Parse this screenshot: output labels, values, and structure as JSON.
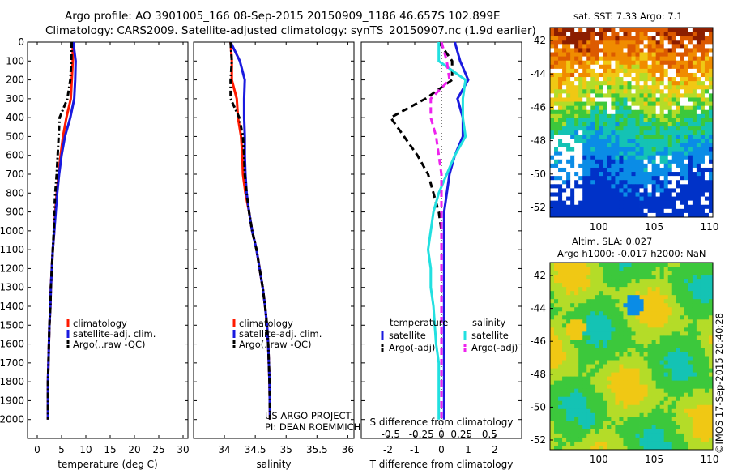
{
  "header": {
    "line1": "Argo profile: AO 3901005_166 08-Sep-2015 20150909_1186 46.657S 102.899E",
    "line2": "Climatology: CARS2009. Satellite-adjusted climatology: synTS_20150907.nc (1.9d earlier)"
  },
  "project": {
    "line1": "US ARGO PROJECT",
    "line2": "PI: DEAN ROEMMICH"
  },
  "map_sst": {
    "title": "sat. SST: 7.33 Argo: 7.1"
  },
  "map_sla": {
    "title1": "Altim. SLA: 0.027",
    "title2": "Argo h1000: -0.017 h2000: NaN"
  },
  "credit": "©IMOS 17-Sep-2015 20:40:28",
  "colors": {
    "climatology": "#ff1a00",
    "satellite": "#1a1adf",
    "argo": "#000000",
    "sal_satellite": "#22e0e0",
    "sal_argo": "#ee22ee"
  },
  "chart_data": [
    {
      "type": "line",
      "xlabel": "temperature (deg C)",
      "ylabel": "",
      "xlim": [
        -2,
        31
      ],
      "ylim": [
        2100,
        0
      ],
      "xticks": [
        0,
        5,
        10,
        15,
        20,
        25,
        30
      ],
      "yticks": [
        0,
        100,
        200,
        300,
        400,
        500,
        600,
        700,
        800,
        900,
        1000,
        1100,
        1200,
        1300,
        1400,
        1500,
        1600,
        1700,
        1800,
        1900,
        2000
      ],
      "legend": [
        "climatology",
        "satellite-adj. clim.",
        "Argo(..raw -QC)"
      ],
      "series": [
        {
          "name": "climatology",
          "x": [
            7.3,
            7.3,
            7.1,
            6.9,
            6.0,
            5.3,
            4.8,
            4.4,
            4.0,
            3.7,
            3.5,
            3.2,
            3.0,
            2.8,
            2.7,
            2.5,
            2.4,
            2.3,
            2.2,
            2.2
          ],
          "y": [
            0,
            100,
            200,
            300,
            400,
            500,
            600,
            700,
            800,
            900,
            1000,
            1100,
            1200,
            1300,
            1400,
            1500,
            1600,
            1700,
            1800,
            2000
          ]
        },
        {
          "name": "satellite-adj. clim.",
          "x": [
            7.4,
            7.9,
            7.8,
            7.6,
            6.8,
            5.7,
            5.0,
            4.5,
            4.1,
            3.8,
            3.5,
            3.2,
            3.0,
            2.8,
            2.7,
            2.5,
            2.4,
            2.3,
            2.2,
            2.2
          ],
          "y": [
            0,
            100,
            200,
            300,
            400,
            500,
            600,
            700,
            800,
            900,
            1000,
            1100,
            1200,
            1300,
            1400,
            1500,
            1600,
            1700,
            1800,
            2000
          ]
        },
        {
          "name": "Argo(..raw -QC)",
          "x": [
            7.1,
            7.0,
            6.8,
            6.2,
            4.6,
            4.4,
            4.2,
            4.0,
            3.7,
            3.5,
            3.4,
            3.2,
            3.0,
            2.8,
            2.7,
            2.5,
            2.4,
            2.3,
            2.2,
            2.2
          ],
          "y": [
            0,
            100,
            200,
            300,
            400,
            500,
            600,
            700,
            800,
            900,
            1000,
            1100,
            1200,
            1300,
            1400,
            1500,
            1600,
            1700,
            1800,
            2000
          ]
        }
      ]
    },
    {
      "type": "line",
      "xlabel": "salinity",
      "xlim": [
        33.5,
        36.1
      ],
      "ylim": [
        2100,
        0
      ],
      "xticks": [
        34,
        34.5,
        35,
        35.5,
        36
      ],
      "legend": [
        "climatology",
        "satellite-adj. clim.",
        "Argo(..raw -QC)"
      ],
      "series": [
        {
          "name": "climatology",
          "x": [
            34.1,
            34.12,
            34.12,
            34.2,
            34.22,
            34.27,
            34.29,
            34.3,
            34.34,
            34.4,
            34.45,
            34.52,
            34.57,
            34.62,
            34.66,
            34.69,
            34.71,
            34.72,
            34.73,
            34.74
          ],
          "y": [
            0,
            100,
            200,
            300,
            400,
            500,
            600,
            700,
            800,
            900,
            1000,
            1100,
            1200,
            1300,
            1400,
            1500,
            1600,
            1700,
            1800,
            2000
          ]
        },
        {
          "name": "satellite-adj. clim.",
          "x": [
            34.1,
            34.25,
            34.33,
            34.32,
            34.32,
            34.33,
            34.33,
            34.34,
            34.36,
            34.4,
            34.45,
            34.52,
            34.57,
            34.62,
            34.66,
            34.69,
            34.71,
            34.72,
            34.73,
            34.74
          ],
          "y": [
            0,
            100,
            200,
            300,
            400,
            500,
            600,
            700,
            800,
            900,
            1000,
            1100,
            1200,
            1300,
            1400,
            1500,
            1600,
            1700,
            1800,
            2000
          ]
        },
        {
          "name": "Argo(..raw -QC)",
          "x": [
            34.1,
            34.12,
            34.1,
            34.1,
            34.24,
            34.3,
            34.32,
            34.33,
            34.36,
            34.4,
            34.45,
            34.52,
            34.57,
            34.62,
            34.66,
            34.69,
            34.71,
            34.72,
            34.73,
            34.74
          ],
          "y": [
            0,
            100,
            200,
            300,
            400,
            500,
            600,
            700,
            800,
            900,
            1000,
            1100,
            1200,
            1300,
            1400,
            1500,
            1600,
            1700,
            1800,
            2000
          ]
        }
      ]
    },
    {
      "type": "line",
      "xlabel": "T difference from climatology",
      "toplabel": "S difference from climatology",
      "xlim": [
        -3,
        3
      ],
      "ylim": [
        2100,
        0
      ],
      "xticks": [
        -2,
        -1,
        0,
        1,
        2
      ],
      "s_ticks": [
        "-0.5",
        "-0.25",
        "0",
        "0.25",
        "0.5"
      ],
      "legend_groups": [
        "temperature",
        "salinity"
      ],
      "legend": [
        "satellite",
        "Argo(-adj)",
        "satellite",
        "Argo(-adj)"
      ],
      "series": [
        {
          "name": "satellite",
          "x": [
            0.5,
            0.7,
            1.0,
            0.6,
            0.8,
            0.8,
            0.5,
            0.3,
            0.2,
            0.1,
            0.1,
            0.1,
            0.1,
            0.1,
            0.1,
            0.1,
            0.1,
            0.1,
            0.1
          ],
          "y": [
            0,
            100,
            200,
            300,
            400,
            500,
            600,
            700,
            800,
            900,
            1000,
            1100,
            1200,
            1300,
            1400,
            1600,
            1700,
            1800,
            2000
          ]
        },
        {
          "name": "Argo(-adj)",
          "x": [
            -0.1,
            0.4,
            0.4,
            -0.6,
            -1.9,
            -1.4,
            -0.9,
            -0.5,
            -0.3,
            -0.1,
            0.0,
            0.0,
            0.0,
            0.0,
            0.0,
            0.0,
            0.0,
            0.0,
            0.0
          ],
          "y": [
            0,
            100,
            200,
            300,
            400,
            500,
            600,
            700,
            800,
            900,
            1000,
            1100,
            1200,
            1300,
            1400,
            1600,
            1700,
            1800,
            2000
          ]
        },
        {
          "name": "satellite",
          "x": [
            -0.1,
            -0.1,
            0.9,
            0.8,
            0.8,
            0.9,
            0.5,
            0.2,
            -0.1,
            -0.3,
            -0.4,
            -0.5,
            -0.4,
            -0.4,
            -0.3,
            -0.2,
            -0.1,
            -0.1,
            -0.1
          ],
          "y": [
            0,
            100,
            200,
            300,
            400,
            500,
            600,
            700,
            800,
            900,
            1000,
            1100,
            1200,
            1300,
            1400,
            1600,
            1700,
            1800,
            2000
          ]
        },
        {
          "name": "Argo(-adj)",
          "x": [
            0.0,
            0.2,
            0.3,
            -0.4,
            -0.4,
            -0.2,
            -0.1,
            0.0,
            0.0,
            0.0,
            0.0,
            0.0,
            0.0,
            0.0,
            0.0,
            0.0,
            0.0,
            0.0,
            0.0
          ],
          "y": [
            0,
            100,
            200,
            300,
            400,
            500,
            600,
            700,
            800,
            900,
            1000,
            1100,
            1200,
            1300,
            1400,
            1600,
            1700,
            1800,
            2000
          ]
        }
      ]
    }
  ],
  "maps": {
    "xticks": [
      "100",
      "105",
      "110"
    ],
    "yticks": [
      "-42",
      "-44",
      "-46",
      "-48",
      "-50",
      "-52"
    ]
  }
}
